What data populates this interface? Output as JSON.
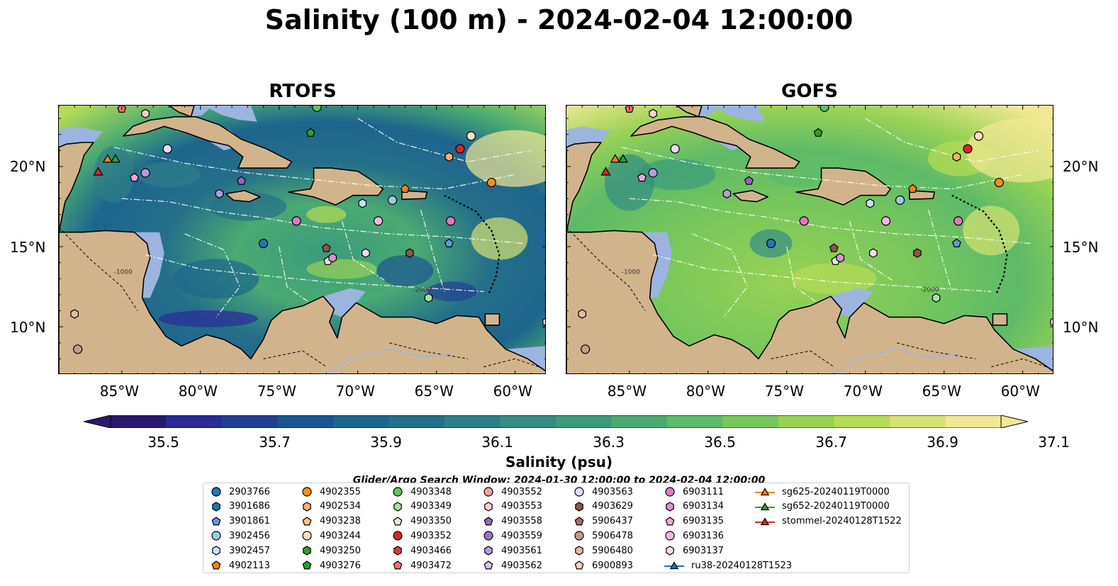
{
  "title": "Salinity (100 m) - 2024-02-04 12:00:00",
  "panels": [
    {
      "title": "RTOFS"
    },
    {
      "title": "GOFS"
    }
  ],
  "map": {
    "lon_range": [
      -89,
      -58
    ],
    "lat_range": [
      7,
      23.8
    ],
    "lon_ticks": [
      "85°W",
      "80°W",
      "75°W",
      "70°W",
      "65°W",
      "60°W"
    ],
    "lat_ticks": [
      "20°N",
      "15°N",
      "10°N"
    ],
    "contour_labels": [
      "-1000",
      "-2000"
    ],
    "land_color": "#d2b48c",
    "shelf_color": "#9bb5e0",
    "pacific_color": "#2b1863"
  },
  "colorbar": {
    "label": "Salinity (psu)",
    "ticks": [
      "35.5",
      "35.7",
      "35.9",
      "36.1",
      "36.3",
      "36.5",
      "36.7",
      "36.9",
      "37.1"
    ],
    "colors": [
      "#2a1a6e",
      "#2b2a98",
      "#213f93",
      "#1b5591",
      "#1d658d",
      "#256f8a",
      "#2d7f87",
      "#348d83",
      "#3b9b7c",
      "#4aaa72",
      "#5dba68",
      "#78c75c",
      "#98d255",
      "#b6dc56",
      "#d6e272",
      "#f2e894"
    ],
    "extend": "both"
  },
  "search_window": "Glider/Argo Search Window: 2024-01-30 12:00:00 to 2024-02-04 12:00:00",
  "legend": [
    {
      "label": "2903766",
      "color": "#1f77b4",
      "marker": "circle"
    },
    {
      "label": "3901686",
      "color": "#1f77b4",
      "marker": "hexagon"
    },
    {
      "label": "3901861",
      "color": "#5d9ad6",
      "marker": "pentagon"
    },
    {
      "label": "3902456",
      "color": "#9ecae1",
      "marker": "circle"
    },
    {
      "label": "3902457",
      "color": "#c6e2f5",
      "marker": "hexagon"
    },
    {
      "label": "4902113",
      "color": "#ff7f0e",
      "marker": "pentagon"
    },
    {
      "label": "4902355",
      "color": "#ff8c1a",
      "marker": "circle"
    },
    {
      "label": "4902534",
      "color": "#fdae6b",
      "marker": "hexagon"
    },
    {
      "label": "4903238",
      "color": "#fdc38a",
      "marker": "pentagon"
    },
    {
      "label": "4903244",
      "color": "#fde0c0",
      "marker": "circle"
    },
    {
      "label": "4903250",
      "color": "#2ca02c",
      "marker": "hexagon"
    },
    {
      "label": "4903276",
      "color": "#2ca02c",
      "marker": "pentagon"
    },
    {
      "label": "4903348",
      "color": "#5cc45c",
      "marker": "circle"
    },
    {
      "label": "4903349",
      "color": "#a8e0a0",
      "marker": "hexagon"
    },
    {
      "label": "4903350",
      "color": "#d9f2d0",
      "marker": "pentagon"
    },
    {
      "label": "4903352",
      "color": "#d62728",
      "marker": "circle"
    },
    {
      "label": "4903466",
      "color": "#e03a3a",
      "marker": "hexagon"
    },
    {
      "label": "4903472",
      "color": "#f07070",
      "marker": "pentagon"
    },
    {
      "label": "4903552",
      "color": "#f4a0a0",
      "marker": "circle"
    },
    {
      "label": "4903553",
      "color": "#fcd0d0",
      "marker": "hexagon"
    },
    {
      "label": "4903558",
      "color": "#9467bd",
      "marker": "pentagon"
    },
    {
      "label": "4903559",
      "color": "#9b72c9",
      "marker": "circle"
    },
    {
      "label": "4903561",
      "color": "#b39ddb",
      "marker": "hexagon"
    },
    {
      "label": "4903562",
      "color": "#d4c2f0",
      "marker": "pentagon"
    },
    {
      "label": "4903563",
      "color": "#e6daf7",
      "marker": "circle"
    },
    {
      "label": "4903629",
      "color": "#8c564b",
      "marker": "hexagon"
    },
    {
      "label": "5906437",
      "color": "#a0705f",
      "marker": "pentagon"
    },
    {
      "label": "5906478",
      "color": "#c49c8c",
      "marker": "circle"
    },
    {
      "label": "5906480",
      "color": "#e7b9a8",
      "marker": "hexagon"
    },
    {
      "label": "6900893",
      "color": "#f7d4c0",
      "marker": "pentagon"
    },
    {
      "label": "6903111",
      "color": "#e377c2",
      "marker": "circle"
    },
    {
      "label": "6903134",
      "color": "#e98ccd",
      "marker": "hexagon"
    },
    {
      "label": "6903135",
      "color": "#f0a6da",
      "marker": "pentagon"
    },
    {
      "label": "6903136",
      "color": "#f7b6e4",
      "marker": "circle"
    },
    {
      "label": "6903137",
      "color": "#fbd7f0",
      "marker": "hexagon"
    },
    {
      "label": "ru38-20240128T1523",
      "color": "#1f77b4",
      "marker": "triangle"
    },
    {
      "label": "sg625-20240119T0000",
      "color": "#ff7f0e",
      "marker": "triangle"
    },
    {
      "label": "sg652-20240119T0000",
      "color": "#2ca02c",
      "marker": "triangle"
    },
    {
      "label": "stommel-20240128T1522",
      "color": "#d62728",
      "marker": "triangle"
    }
  ],
  "floats": [
    {
      "lon": -76.0,
      "lat": 15.2,
      "color": "#1f77b4",
      "marker": "circle"
    },
    {
      "lon": -64.2,
      "lat": 15.2,
      "color": "#5d9ad6",
      "marker": "pentagon"
    },
    {
      "lon": -69.7,
      "lat": 17.7,
      "color": "#c6e2f5",
      "marker": "hexagon"
    },
    {
      "lon": -67.8,
      "lat": 17.9,
      "color": "#9ecae1",
      "marker": "circle"
    },
    {
      "lon": -67.0,
      "lat": 18.6,
      "color": "#ff7f0e",
      "marker": "pentagon"
    },
    {
      "lon": -61.5,
      "lat": 19.0,
      "color": "#ff8c1a",
      "marker": "circle"
    },
    {
      "lon": -64.2,
      "lat": 20.6,
      "color": "#fdae6b",
      "marker": "hexagon"
    },
    {
      "lon": -62.8,
      "lat": 21.9,
      "color": "#fde0c0",
      "marker": "circle"
    },
    {
      "lon": -63.5,
      "lat": 21.1,
      "color": "#d62728",
      "marker": "circle"
    },
    {
      "lon": -73.0,
      "lat": 22.1,
      "color": "#2ca02c",
      "marker": "pentagon"
    },
    {
      "lon": -72.6,
      "lat": 23.7,
      "color": "#5cc45c",
      "marker": "circle"
    },
    {
      "lon": -65.5,
      "lat": 11.8,
      "color": "#a8e0a0",
      "marker": "hexagon"
    },
    {
      "lon": -71.9,
      "lat": 14.1,
      "color": "#d9f2d0",
      "marker": "pentagon"
    },
    {
      "lon": -72.0,
      "lat": 14.9,
      "color": "#8c564b",
      "marker": "pentagon"
    },
    {
      "lon": -66.7,
      "lat": 14.6,
      "color": "#8c564b",
      "marker": "hexagon"
    },
    {
      "lon": -85.0,
      "lat": 23.6,
      "color": "#f07070",
      "marker": "pentagon"
    },
    {
      "lon": -83.5,
      "lat": 23.3,
      "color": "#fcd0d0",
      "marker": "hexagon"
    },
    {
      "lon": -84.2,
      "lat": 19.3,
      "color": "#f0a6da",
      "marker": "pentagon"
    },
    {
      "lon": -83.5,
      "lat": 19.6,
      "color": "#b39ddb",
      "marker": "circle"
    },
    {
      "lon": -82.1,
      "lat": 21.1,
      "color": "#e6daf7",
      "marker": "circle"
    },
    {
      "lon": -78.8,
      "lat": 18.3,
      "color": "#b39ddb",
      "marker": "hexagon"
    },
    {
      "lon": -77.4,
      "lat": 19.1,
      "color": "#9467bd",
      "marker": "pentagon"
    },
    {
      "lon": -73.9,
      "lat": 16.6,
      "color": "#e377c2",
      "marker": "circle"
    },
    {
      "lon": -68.7,
      "lat": 16.6,
      "color": "#f7b6e4",
      "marker": "circle"
    },
    {
      "lon": -64.1,
      "lat": 16.6,
      "color": "#e377c2",
      "marker": "circle"
    },
    {
      "lon": -71.6,
      "lat": 14.3,
      "color": "#e98ccd",
      "marker": "hexagon"
    },
    {
      "lon": -69.5,
      "lat": 14.6,
      "color": "#fbd7f0",
      "marker": "hexagon"
    },
    {
      "lon": -88.0,
      "lat": 10.8,
      "color": "#e7b9a8",
      "marker": "hexagon"
    },
    {
      "lon": -87.8,
      "lat": 8.6,
      "color": "#c49c8c",
      "marker": "circle"
    },
    {
      "lon": -58.0,
      "lat": 10.3,
      "color": "#f7d4c0",
      "marker": "hexagon"
    }
  ],
  "gliders": [
    {
      "lon": -86.5,
      "lat": 19.7,
      "color": "#d62728"
    },
    {
      "lon": -85.9,
      "lat": 20.5,
      "color": "#ff7f0e"
    },
    {
      "lon": -85.4,
      "lat": 20.5,
      "color": "#2ca02c"
    }
  ]
}
